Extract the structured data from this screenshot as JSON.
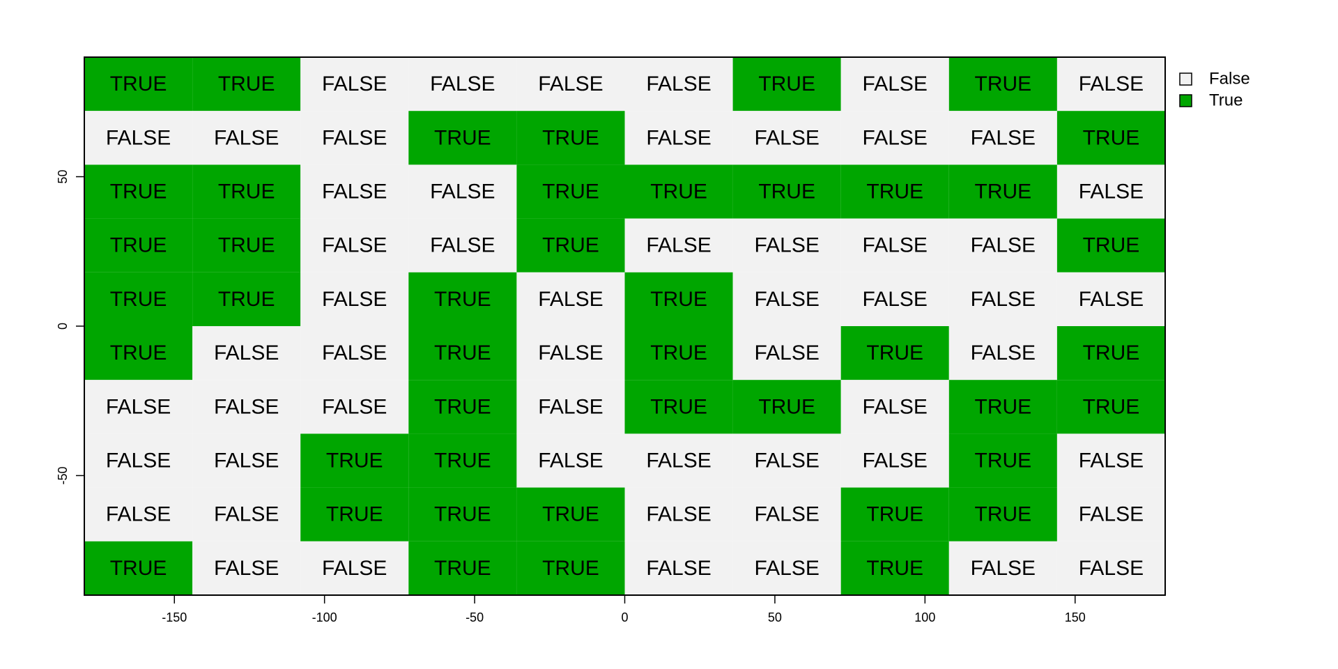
{
  "chart_data": {
    "type": "heatmap",
    "title": "",
    "xlabel": "",
    "ylabel": "",
    "xlim": [
      -180,
      180
    ],
    "ylim": [
      -90,
      90
    ],
    "x_centers": [
      -162,
      -126,
      -90,
      -54,
      -18,
      18,
      54,
      90,
      126,
      162
    ],
    "y_centers": [
      81,
      63,
      45,
      27,
      9,
      -9,
      -27,
      -45,
      -63,
      -81
    ],
    "cell_width": 36,
    "cell_height": 18,
    "x_ticks": [
      -150,
      -100,
      -50,
      0,
      50,
      100,
      150
    ],
    "y_ticks": [
      -50,
      0,
      50
    ],
    "grid": false,
    "values": [
      [
        true,
        true,
        false,
        false,
        false,
        false,
        true,
        false,
        true,
        false
      ],
      [
        false,
        false,
        false,
        true,
        true,
        false,
        false,
        false,
        false,
        true
      ],
      [
        true,
        true,
        false,
        false,
        true,
        true,
        true,
        true,
        true,
        false
      ],
      [
        true,
        true,
        false,
        false,
        true,
        false,
        false,
        false,
        false,
        true
      ],
      [
        true,
        true,
        false,
        true,
        false,
        true,
        false,
        false,
        false,
        false
      ],
      [
        true,
        false,
        false,
        true,
        false,
        true,
        false,
        true,
        false,
        true
      ],
      [
        false,
        false,
        false,
        true,
        false,
        true,
        true,
        false,
        true,
        true
      ],
      [
        false,
        false,
        true,
        true,
        false,
        false,
        false,
        false,
        true,
        false
      ],
      [
        false,
        false,
        true,
        true,
        true,
        false,
        false,
        true,
        true,
        false
      ],
      [
        true,
        false,
        false,
        true,
        true,
        false,
        false,
        true,
        false,
        false
      ]
    ],
    "cell_label_true": "TRUE",
    "cell_label_false": "FALSE",
    "colors": {
      "true": "#00A600",
      "false": "#F2F2F2"
    },
    "legend": {
      "position": "right",
      "entries": [
        {
          "label": "False",
          "color": "#F2F2F2"
        },
        {
          "label": "True",
          "color": "#00A600"
        }
      ]
    }
  }
}
